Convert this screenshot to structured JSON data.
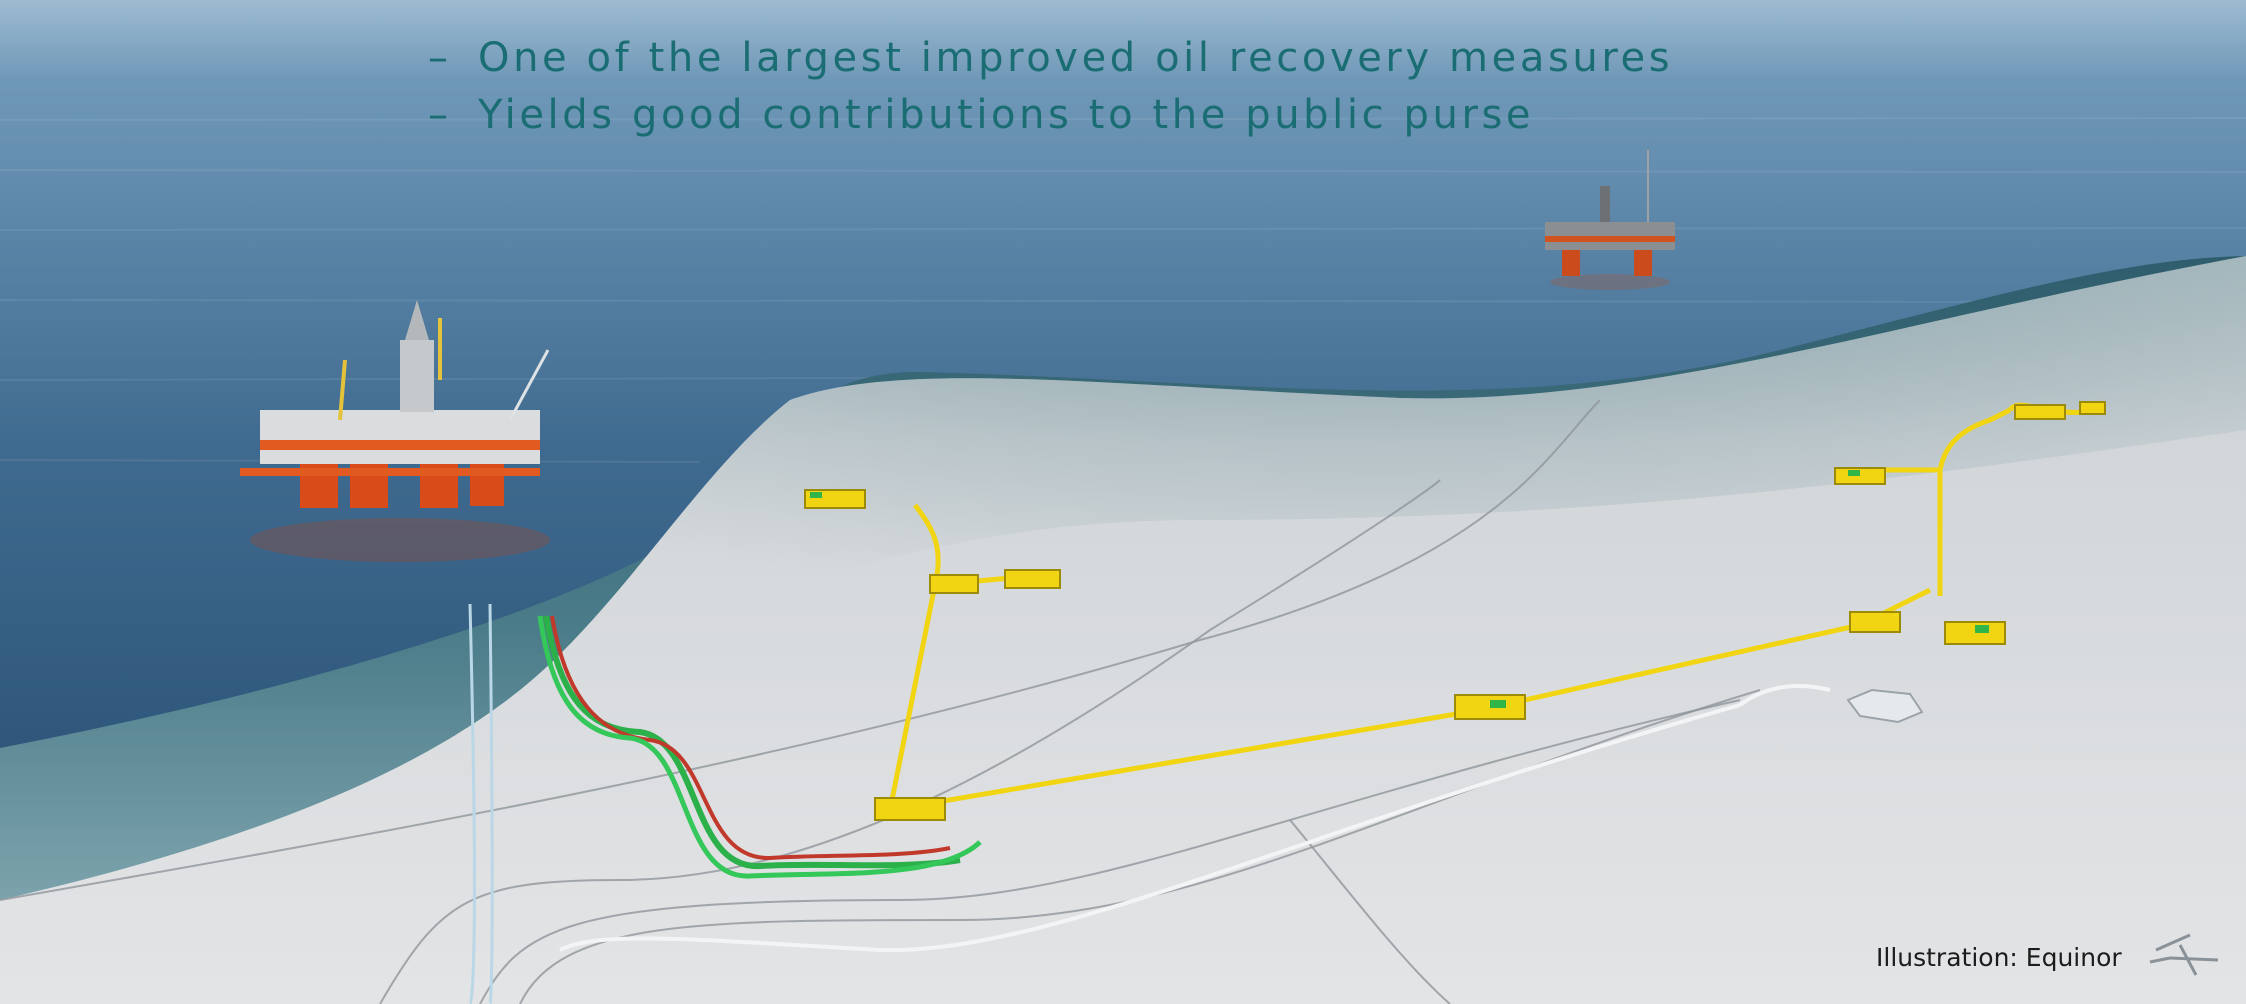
{
  "slide": {
    "bullets": [
      {
        "marker": "–",
        "text": "One of the largest improved oil recovery measures"
      },
      {
        "marker": "–",
        "text": "Yields good contributions to the public purse"
      }
    ],
    "credit": "Illustration: Equinor"
  },
  "illustration": {
    "background_icons": [
      "sea-surface",
      "seabed",
      "semi-submersible-rig-left",
      "platform-right",
      "subsea-templates",
      "pipelines",
      "equinor-logo-icon"
    ],
    "colors": {
      "sea_top": "#8fb3cd",
      "sea_deep": "#264d70",
      "water_column": "#3e6e80",
      "seabed": "#d9dcdf",
      "pipeline_yellow": "#f1d512",
      "rig_orange": "#e04a16",
      "bullet_text": "#1a6d73"
    }
  }
}
